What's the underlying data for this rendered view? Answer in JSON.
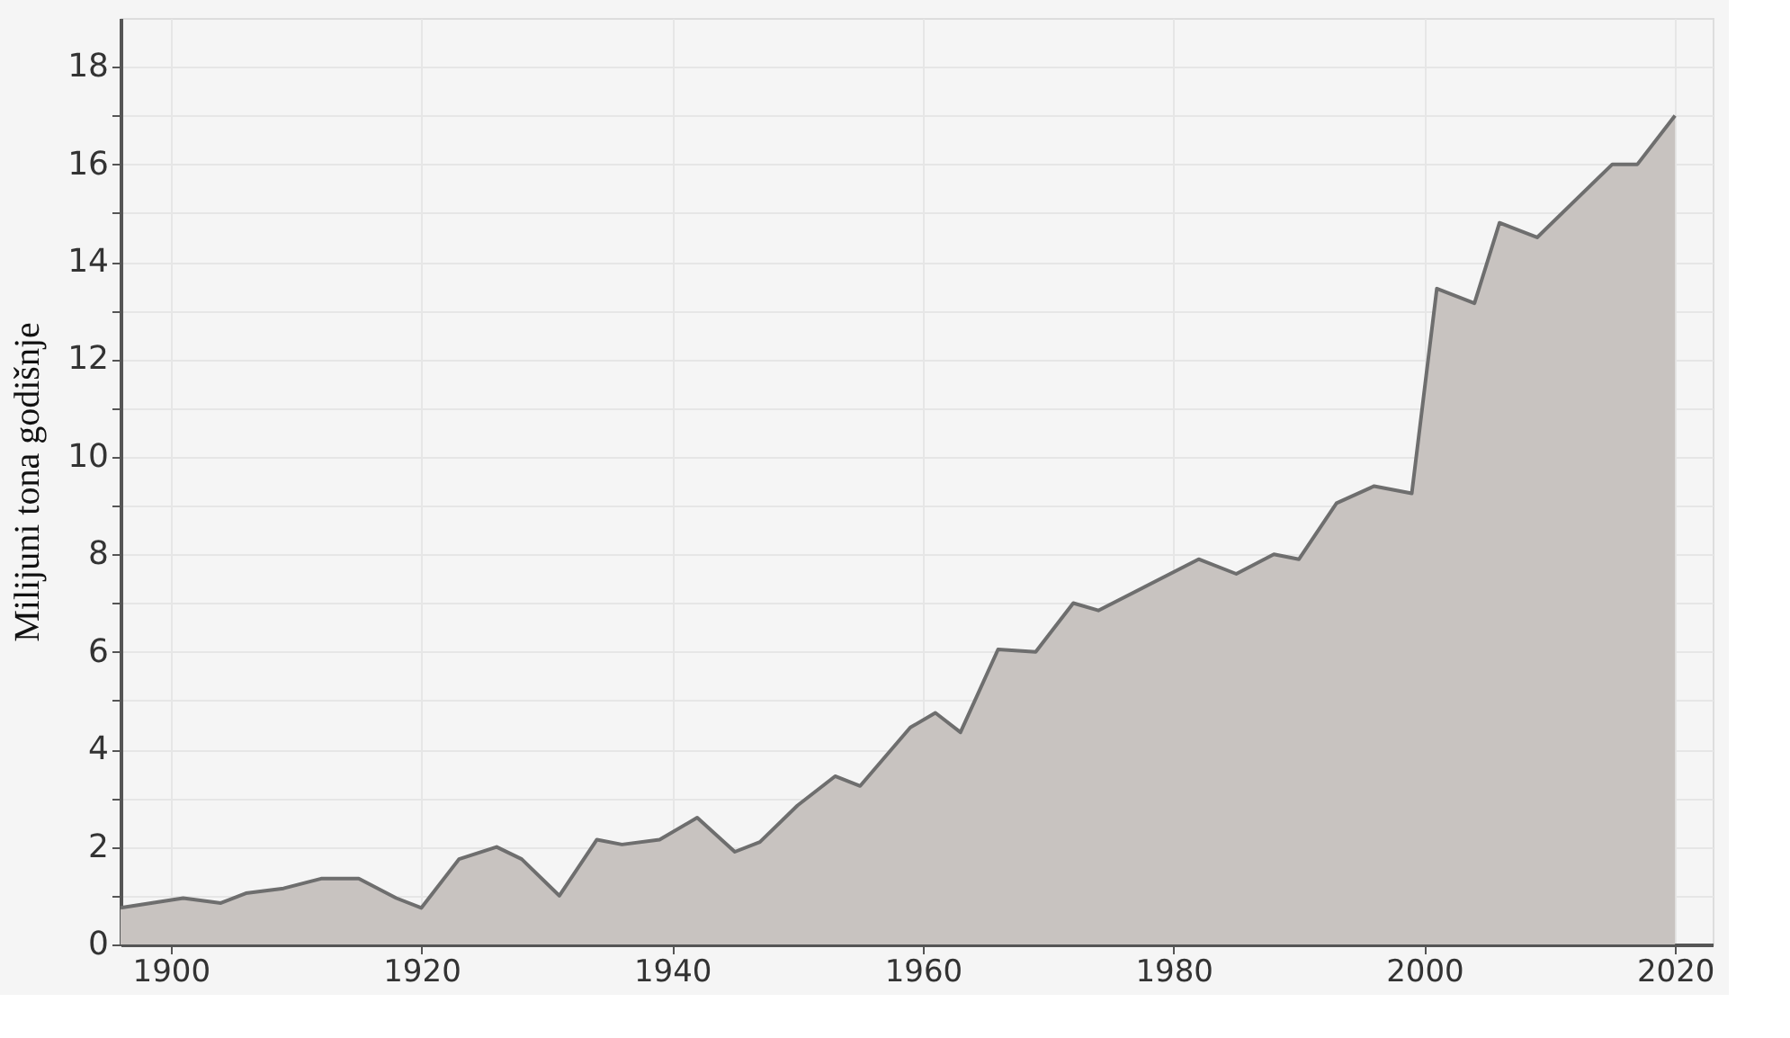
{
  "chart_data": {
    "type": "area",
    "ylabel": "Milijuni tona godišnje",
    "x": [
      1896,
      1901,
      1904,
      1906,
      1909,
      1912,
      1915,
      1918,
      1920,
      1923,
      1926,
      1928,
      1931,
      1934,
      1936,
      1939,
      1942,
      1945,
      1947,
      1950,
      1953,
      1955,
      1959,
      1961,
      1963,
      1966,
      1969,
      1972,
      1974,
      1982,
      1985,
      1988,
      1990,
      1993,
      1996,
      1999,
      2001,
      2004,
      2006,
      2009,
      2015,
      2017,
      2020
    ],
    "series": [
      {
        "color": "#c8c3c0",
        "values": [
          0.75,
          0.95,
          0.85,
          1.05,
          1.15,
          1.35,
          1.35,
          0.95,
          0.75,
          1.75,
          2.0,
          1.75,
          1.0,
          2.15,
          2.05,
          2.15,
          2.6,
          1.9,
          2.1,
          2.85,
          3.45,
          3.25,
          4.45,
          4.75,
          4.35,
          6.05,
          6.0,
          7.0,
          6.85,
          7.9,
          7.6,
          8.0,
          7.9,
          9.05,
          9.4,
          9.25,
          13.45,
          13.15,
          14.8,
          14.5,
          16.0,
          16.0,
          17.0
        ]
      }
    ],
    "xlim": [
      1896,
      2023
    ],
    "xticks": [
      1900,
      1920,
      1940,
      1960,
      1980,
      2000,
      2020
    ],
    "ylim": [
      0,
      19
    ],
    "yticks": [
      0,
      {
        "value": 1,
        "label": null
      },
      2,
      {
        "value": 3,
        "label": null
      },
      4,
      {
        "value": 5,
        "label": null
      },
      6,
      {
        "value": 7,
        "label": null
      },
      8,
      {
        "value": 9,
        "label": null
      },
      10,
      {
        "value": 11,
        "label": null
      },
      12,
      {
        "value": 13,
        "label": null
      },
      14,
      {
        "value": 15,
        "label": null
      },
      16,
      {
        "value": 17,
        "label": null
      },
      18
    ],
    "grid": true
  }
}
